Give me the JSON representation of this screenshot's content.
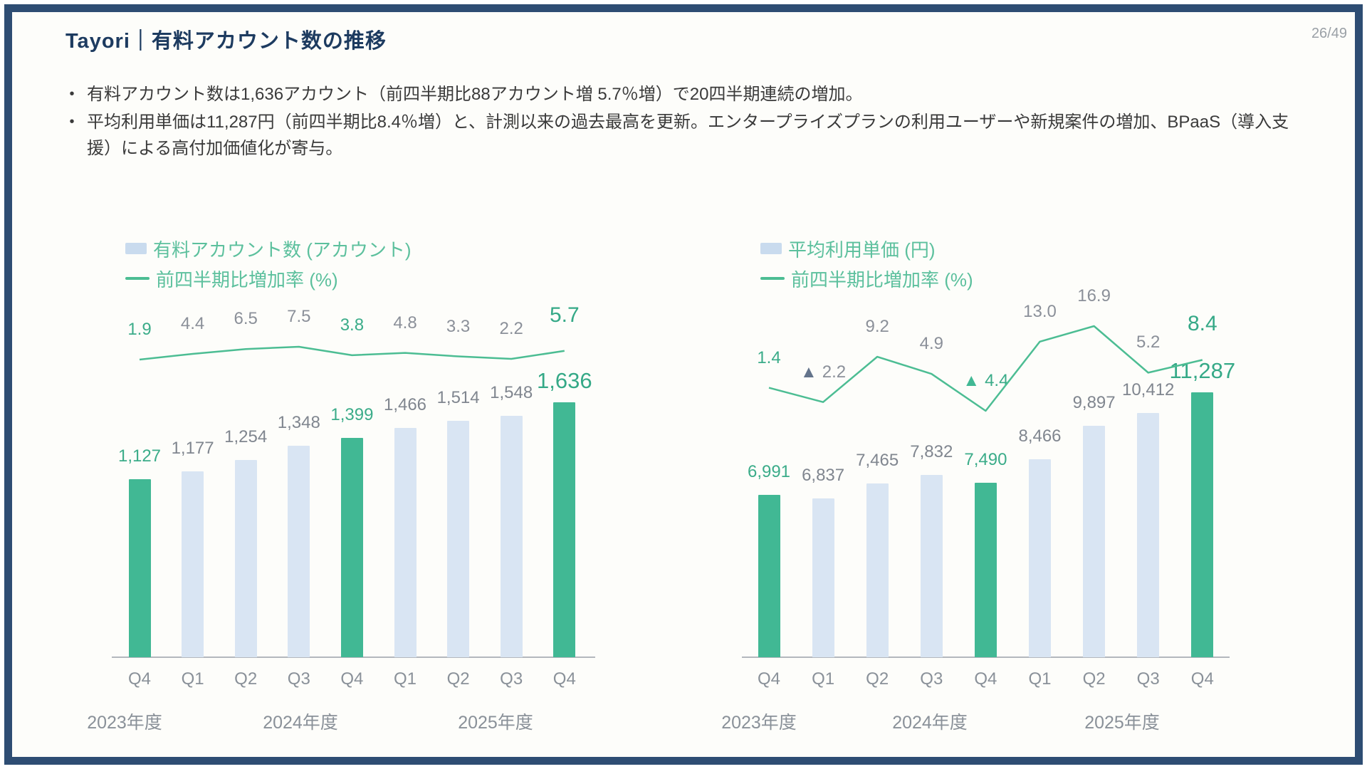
{
  "page": {
    "title": "Tayori｜有料アカウント数の推移",
    "page_number": "26/49",
    "bullet_char": "•",
    "bullets": [
      "有料アカウント数は1,636アカウント（前四半期比88アカウント増 5.7％増）で20四半期連続の増加。",
      "平均利用単価は11,287円（前四半期比8.4％増）と、計測以来の過去最高を更新。エンタープライズプランの利用ユーザーや新規案件の増加、BPaaS（導入支援）による高付加価値化が寄与。"
    ]
  },
  "colors": {
    "frame_navy": "#2e4d73",
    "title_navy": "#1d3b60",
    "bar_green": "#41b894",
    "bar_light_blue": "#d9e5f3",
    "line_green": "#4cbd93",
    "label_gray": "#80868f",
    "green_text": "#3bac89",
    "negative_triangle_slate": "#64748b"
  },
  "chart_data": [
    {
      "type": "bar",
      "legend": [
        {
          "swatch": "bar",
          "label": "有料アカウント数 (アカウント)"
        },
        {
          "swatch": "line",
          "label": "前四半期比増加率 (%)"
        }
      ],
      "categories": [
        "Q4",
        "Q1",
        "Q2",
        "Q3",
        "Q4",
        "Q1",
        "Q2",
        "Q3",
        "Q4"
      ],
      "year_labels": [
        "2023年度",
        "2024年度",
        "2025年度"
      ],
      "bars": {
        "name": "有料アカウント数 (アカウント)",
        "values": [
          1127,
          1177,
          1254,
          1348,
          1399,
          1466,
          1514,
          1548,
          1636
        ],
        "labels": [
          "1,127",
          "1,177",
          "1,254",
          "1,348",
          "1,399",
          "1,466",
          "1,514",
          "1,548",
          "1,636"
        ]
      },
      "line": {
        "name": "前四半期比増加率 (%)",
        "values": [
          1.9,
          4.4,
          6.5,
          7.5,
          3.8,
          4.8,
          3.3,
          2.2,
          5.7
        ],
        "labels": [
          "1.9",
          "4.4",
          "6.5",
          "7.5",
          "3.8",
          "4.8",
          "3.3",
          "2.2",
          "5.7"
        ],
        "negative_indexes": []
      },
      "highlight_indexes": [
        0,
        4,
        8
      ],
      "emphasis_index": 8,
      "negative_marker": "▲"
    },
    {
      "type": "bar",
      "legend": [
        {
          "swatch": "bar",
          "label": "平均利用単価 (円)"
        },
        {
          "swatch": "line",
          "label": "前四半期比増加率 (%)"
        }
      ],
      "categories": [
        "Q4",
        "Q1",
        "Q2",
        "Q3",
        "Q4",
        "Q1",
        "Q2",
        "Q3",
        "Q4"
      ],
      "year_labels": [
        "2023年度",
        "2024年度",
        "2025年度"
      ],
      "bars": {
        "name": "平均利用単価 (円)",
        "values": [
          6991,
          6837,
          7465,
          7832,
          7490,
          8466,
          9897,
          10412,
          11287
        ],
        "labels": [
          "6,991",
          "6,837",
          "7,465",
          "7,832",
          "7,490",
          "8,466",
          "9,897",
          "10,412",
          "11,287"
        ]
      },
      "line": {
        "name": "前四半期比増加率 (%)",
        "values": [
          1.4,
          -2.2,
          9.2,
          4.9,
          -4.4,
          13.0,
          16.9,
          5.2,
          8.4
        ],
        "labels": [
          "1.4",
          "2.2",
          "9.2",
          "4.9",
          "4.4",
          "13.0",
          "16.9",
          "5.2",
          "8.4"
        ],
        "negative_indexes": [
          1,
          4
        ]
      },
      "highlight_indexes": [
        0,
        4,
        8
      ],
      "emphasis_index": 8,
      "negative_marker": "▲"
    }
  ]
}
